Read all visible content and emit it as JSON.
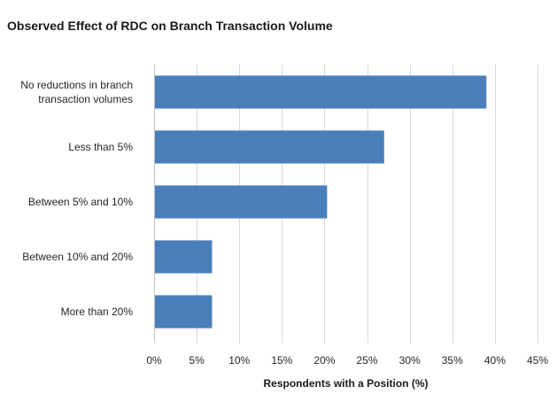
{
  "chart_data": {
    "type": "bar",
    "orientation": "horizontal",
    "title": "Observed Effect of RDC on Branch Transaction Volume",
    "xlabel": "Respondents with a Position (%)",
    "ylabel": "",
    "categories": [
      [
        "No reductions in branch",
        "transaction volumes"
      ],
      [
        "Less than 5%"
      ],
      [
        "Between 5% and 10%"
      ],
      [
        "Between 10% and 20%"
      ],
      [
        "More than 20%"
      ]
    ],
    "values": [
      39,
      27,
      20.3,
      6.8,
      6.8
    ],
    "xlim": [
      0,
      45
    ],
    "xticks": [
      0,
      5,
      10,
      15,
      20,
      25,
      30,
      35,
      40,
      45
    ],
    "xtick_labels": [
      "0%",
      "5%",
      "10%",
      "15%",
      "20%",
      "25%",
      "30%",
      "35%",
      "40%",
      "45%"
    ],
    "grid": "vertical",
    "legend": "none",
    "bar_color": "#4a7ebb",
    "grid_color": "#d9d9d9"
  }
}
